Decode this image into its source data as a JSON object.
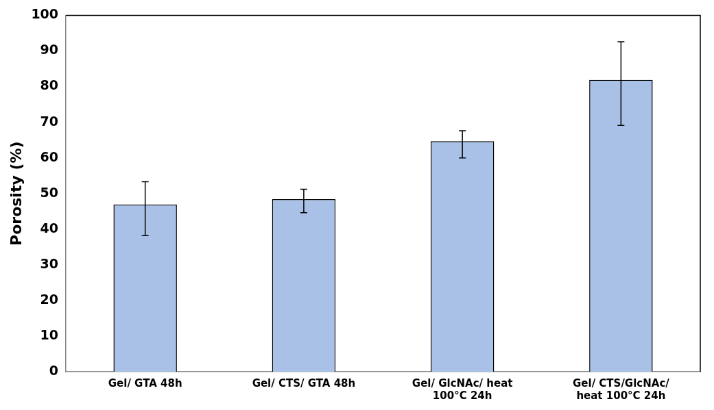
{
  "chart_data": {
    "type": "bar",
    "ylabel": "Porosity (%)",
    "categories": [
      "Gel/ GTA 48h",
      "Gel/ CTS/ GTA 48h",
      "Gel/ GlcNAc/ heat 100°C 24h",
      "Gel/ CTS/GlcNAc/ heat 100°C 24h"
    ],
    "values": [
      46.9,
      48.4,
      64.7,
      81.9
    ],
    "errors": [
      [
        38.2,
        53.3
      ],
      [
        44.6,
        51.2
      ],
      [
        60.0,
        67.6
      ],
      [
        69.1,
        92.6
      ]
    ],
    "color": "#a9c1e6",
    "ylim": [
      0,
      100
    ],
    "yticks": [
      0,
      10,
      20,
      30,
      40,
      50,
      60,
      70,
      80,
      90,
      100
    ],
    "grid": false,
    "legend": false
  }
}
